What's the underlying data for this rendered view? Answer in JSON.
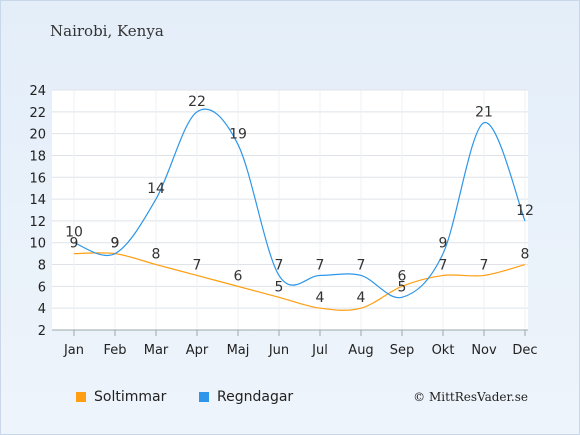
{
  "chart_data": {
    "type": "line",
    "title": "Nairobi, Kenya",
    "categories": [
      "Jan",
      "Feb",
      "Mar",
      "Apr",
      "Maj",
      "Jun",
      "Jul",
      "Aug",
      "Sep",
      "Okt",
      "Nov",
      "Dec"
    ],
    "y_ticks": [
      2,
      4,
      6,
      8,
      10,
      12,
      14,
      16,
      18,
      20,
      22,
      24
    ],
    "ylim": [
      2,
      24
    ],
    "grid": true,
    "legend_position": "bottom-left",
    "series": [
      {
        "name": "Soltimmar",
        "color": "#ff9e12",
        "values": [
          9,
          9,
          8,
          7,
          6,
          5,
          4,
          4,
          6,
          7,
          7,
          8
        ]
      },
      {
        "name": "Regndagar",
        "color": "#2d96ea",
        "values": [
          10,
          9,
          14,
          22,
          19,
          7,
          7,
          7,
          5,
          9,
          21,
          12
        ]
      }
    ]
  },
  "header": {
    "location": "Nairobi, Kenya"
  },
  "legend": {
    "item1": "Soltimmar",
    "item2": "Regndagar"
  },
  "credit": "© MittResVader.se"
}
